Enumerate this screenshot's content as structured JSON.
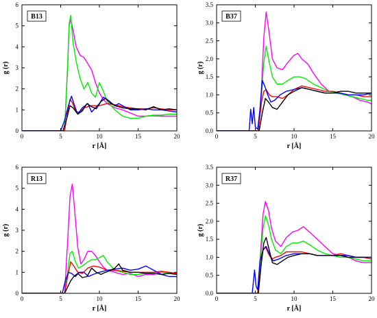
{
  "chart_data": [
    {
      "type": "line",
      "panel_label": "B13",
      "xlabel": "r [Å]",
      "ylabel": "g (r)",
      "xlim": [
        0,
        20
      ],
      "ylim": [
        0,
        6
      ],
      "x_ticks": [
        0,
        5,
        10,
        15,
        20
      ],
      "y_ticks": [
        0,
        1,
        2,
        3,
        4,
        5,
        6
      ],
      "series": [
        {
          "color": "#ff00ff",
          "x": [
            0,
            5.5,
            5.9,
            6.1,
            6.3,
            6.6,
            7,
            7.5,
            8,
            8.5,
            9,
            9.5,
            10,
            10.5,
            11,
            12,
            13,
            14,
            15,
            16,
            17,
            18,
            19,
            20
          ],
          "y": [
            0,
            0,
            3.0,
            5.0,
            5.3,
            4.8,
            4.0,
            3.6,
            3.5,
            3.2,
            2.9,
            2.3,
            1.8,
            1.5,
            1.3,
            1.1,
            1.0,
            0.85,
            0.7,
            0.7,
            0.72,
            0.7,
            0.7,
            0.7
          ]
        },
        {
          "color": "#00ee00",
          "x": [
            0,
            5.5,
            5.9,
            6.1,
            6.3,
            6.6,
            7,
            7.5,
            8,
            8.5,
            9,
            9.5,
            10,
            10.5,
            11,
            12,
            13,
            14,
            15,
            16,
            17,
            18,
            19,
            20
          ],
          "y": [
            0,
            0,
            3.2,
            5.1,
            5.5,
            4.2,
            3.3,
            2.5,
            2.0,
            2.3,
            1.8,
            1.6,
            2.3,
            1.9,
            1.4,
            1.0,
            0.7,
            0.6,
            0.6,
            0.7,
            0.75,
            0.75,
            0.8,
            0.8
          ]
        },
        {
          "color": "#ff0000",
          "x": [
            0,
            5.5,
            5.9,
            6.2,
            6.5,
            7,
            7.5,
            8,
            9,
            10,
            11,
            12,
            13,
            14,
            15,
            16,
            17,
            18,
            19,
            20
          ],
          "y": [
            0,
            0,
            0.9,
            1.5,
            1.35,
            0.9,
            0.9,
            1.1,
            1.2,
            1.2,
            1.3,
            1.25,
            1.15,
            1.1,
            1.05,
            1.05,
            1.1,
            1.05,
            1.0,
            1.0
          ]
        },
        {
          "color": "#0000ff",
          "x": [
            0,
            5.0,
            5.5,
            6.0,
            6.4,
            6.8,
            7.2,
            7.8,
            8.5,
            9,
            9.5,
            10,
            10.5,
            11,
            12,
            12.5,
            13,
            14,
            15,
            16,
            17,
            18,
            19,
            20
          ],
          "y": [
            0,
            0,
            0.5,
            1.2,
            1.65,
            1.2,
            0.8,
            1.1,
            1.3,
            0.9,
            1.1,
            1.3,
            1.6,
            1.5,
            1.2,
            1.3,
            1.2,
            1.0,
            1.0,
            1.05,
            1.0,
            1.0,
            0.95,
            0.9
          ]
        },
        {
          "color": "#000000",
          "x": [
            0,
            5.3,
            5.8,
            6.2,
            6.6,
            7.2,
            7.8,
            8.4,
            9,
            9.6,
            10.2,
            10.8,
            11.5,
            12,
            13,
            14,
            15,
            16,
            17,
            18,
            19,
            20
          ],
          "y": [
            0,
            0,
            0.6,
            1.2,
            1.1,
            0.8,
            0.95,
            1.3,
            1.15,
            1.05,
            1.4,
            1.55,
            1.3,
            1.2,
            1.1,
            1.05,
            1.05,
            1.0,
            1.15,
            1.0,
            1.05,
            1.0
          ]
        }
      ]
    },
    {
      "type": "line",
      "panel_label": "B37",
      "xlabel": "r [Å]",
      "ylabel": "g (r)",
      "xlim": [
        0,
        20
      ],
      "ylim": [
        0,
        3.5
      ],
      "x_ticks": [
        0,
        5,
        10,
        15,
        20
      ],
      "y_ticks": [
        0,
        0.5,
        1.0,
        1.5,
        2.0,
        2.5,
        3.0,
        3.5
      ],
      "series": [
        {
          "color": "#ff00ff",
          "x": [
            0,
            5.4,
            5.8,
            6.1,
            6.4,
            6.8,
            7.2,
            7.8,
            8.5,
            9.2,
            10,
            10.5,
            11,
            11.8,
            12.5,
            13.5,
            14.5,
            15.5,
            16.5,
            17.5,
            18.5,
            19.5,
            20
          ],
          "y": [
            0,
            0,
            1.2,
            2.6,
            3.3,
            2.7,
            2.0,
            1.75,
            1.7,
            1.9,
            2.1,
            2.15,
            2.0,
            1.85,
            1.6,
            1.3,
            1.1,
            1.05,
            1.0,
            0.95,
            0.85,
            0.8,
            0.75
          ]
        },
        {
          "color": "#00ee00",
          "x": [
            0,
            5.4,
            5.8,
            6.1,
            6.4,
            6.8,
            7.2,
            7.8,
            8.5,
            9.2,
            10,
            10.8,
            11.5,
            12.5,
            13.5,
            14.5,
            15.5,
            16.5,
            17.5,
            18.5,
            19.5,
            20
          ],
          "y": [
            0,
            0,
            1.0,
            1.9,
            2.35,
            1.9,
            1.5,
            1.3,
            1.3,
            1.4,
            1.5,
            1.5,
            1.45,
            1.3,
            1.2,
            1.1,
            1.05,
            1.0,
            0.95,
            0.9,
            0.85,
            0.85
          ]
        },
        {
          "color": "#ff0000",
          "x": [
            0,
            5.4,
            5.8,
            6.1,
            6.4,
            6.8,
            7.2,
            7.8,
            8.5,
            9.2,
            10,
            11,
            12,
            13,
            14,
            15,
            16,
            17,
            18,
            19,
            20
          ],
          "y": [
            0,
            0,
            0.8,
            1.1,
            1.15,
            1.0,
            0.95,
            0.95,
            0.9,
            1.0,
            1.15,
            1.25,
            1.2,
            1.15,
            1.1,
            1.1,
            1.05,
            1.0,
            1.0,
            0.95,
            0.95
          ]
        },
        {
          "color": "#0000ff",
          "x": [
            0,
            4.2,
            4.4,
            4.6,
            4.8,
            5.0,
            5.3,
            5.6,
            5.9,
            6.2,
            6.6,
            7.0,
            7.5,
            8.2,
            9,
            10,
            11,
            12,
            13,
            14,
            15,
            16,
            17,
            18,
            19,
            20
          ],
          "y": [
            0,
            0,
            0.6,
            0.2,
            0.65,
            0.1,
            0.05,
            0.6,
            1.4,
            1.25,
            1.0,
            0.8,
            0.85,
            1.0,
            1.1,
            1.15,
            1.2,
            1.15,
            1.1,
            1.05,
            1.05,
            1.05,
            1.0,
            1.0,
            1.0,
            1.05
          ]
        },
        {
          "color": "#000000",
          "x": [
            0,
            5.5,
            5.9,
            6.3,
            6.7,
            7.2,
            7.8,
            8.5,
            9.2,
            10,
            11,
            12,
            13,
            14,
            15,
            16,
            17,
            18,
            19,
            20
          ],
          "y": [
            0,
            0,
            0.5,
            0.9,
            0.8,
            0.65,
            0.6,
            0.8,
            1.0,
            1.1,
            1.2,
            1.15,
            1.1,
            1.05,
            1.05,
            1.1,
            1.1,
            1.05,
            1.05,
            1.05
          ]
        }
      ]
    },
    {
      "type": "line",
      "panel_label": "R13",
      "xlabel": "r [Å]",
      "ylabel": "g (r)",
      "xlim": [
        0,
        20
      ],
      "ylim": [
        0,
        6
      ],
      "x_ticks": [
        0,
        5,
        10,
        15,
        20
      ],
      "y_ticks": [
        0,
        1,
        2,
        3,
        4,
        5,
        6
      ],
      "series": [
        {
          "color": "#ff00ff",
          "x": [
            0,
            5.5,
            5.9,
            6.2,
            6.5,
            6.8,
            7.2,
            7.6,
            8,
            8.5,
            9,
            9.5,
            10,
            10.5,
            11,
            12,
            13,
            14,
            15,
            16,
            17,
            18,
            19,
            20
          ],
          "y": [
            0,
            0,
            2.5,
            4.6,
            5.2,
            4.0,
            2.2,
            1.4,
            1.6,
            2.0,
            2.0,
            1.8,
            1.5,
            1.25,
            1.1,
            1.0,
            0.9,
            0.95,
            0.8,
            0.9,
            0.9,
            1.0,
            1.0,
            0.9
          ]
        },
        {
          "color": "#00ee00",
          "x": [
            0,
            5.5,
            5.9,
            6.2,
            6.5,
            6.9,
            7.3,
            7.8,
            8.5,
            9,
            9.5,
            10,
            10.5,
            11,
            12,
            13,
            14,
            15,
            16,
            17,
            18,
            19,
            20
          ],
          "y": [
            0,
            0,
            1.0,
            1.9,
            2.0,
            1.5,
            1.2,
            1.3,
            1.5,
            1.6,
            1.6,
            1.7,
            1.8,
            1.5,
            1.1,
            1.0,
            0.9,
            0.9,
            0.95,
            1.0,
            1.0,
            0.95,
            0.9
          ]
        },
        {
          "color": "#ff0000",
          "x": [
            0,
            5.5,
            5.9,
            6.3,
            6.7,
            7.2,
            7.8,
            8.5,
            9.2,
            10,
            11,
            12,
            13,
            14,
            15,
            16,
            17,
            18,
            19,
            20
          ],
          "y": [
            0,
            0,
            0.8,
            1.5,
            1.3,
            1.0,
            0.95,
            1.2,
            1.3,
            1.25,
            1.1,
            1.1,
            1.05,
            1.0,
            1.0,
            1.0,
            1.0,
            1.05,
            1.0,
            0.95
          ]
        },
        {
          "color": "#0000ff",
          "x": [
            0,
            5.2,
            5.6,
            6.0,
            6.4,
            6.9,
            7.4,
            8,
            8.6,
            9.2,
            10,
            11,
            12,
            13,
            14,
            15,
            16,
            16.5,
            17,
            18,
            19,
            20
          ],
          "y": [
            0,
            0,
            0.6,
            1.0,
            0.95,
            0.8,
            1.0,
            1.0,
            0.8,
            0.9,
            1.0,
            1.1,
            1.15,
            1.2,
            1.1,
            1.15,
            1.3,
            1.2,
            1.1,
            0.9,
            0.8,
            0.8
          ]
        },
        {
          "color": "#000000",
          "x": [
            0,
            5.5,
            5.9,
            6.3,
            6.7,
            7.2,
            7.8,
            8.4,
            9,
            9.6,
            10.2,
            10.8,
            11.5,
            12,
            12.5,
            13,
            14,
            15,
            16,
            17,
            18,
            19,
            20
          ],
          "y": [
            0,
            0,
            0.3,
            0.6,
            0.8,
            0.95,
            0.75,
            0.8,
            1.2,
            1.0,
            0.9,
            1.0,
            1.1,
            1.2,
            1.4,
            1.1,
            1.0,
            1.0,
            0.95,
            0.95,
            0.9,
            0.95,
            0.9
          ]
        }
      ]
    },
    {
      "type": "line",
      "panel_label": "R37",
      "xlabel": "r [Å]",
      "ylabel": "g (r)",
      "xlim": [
        0,
        20
      ],
      "ylim": [
        0,
        3.5
      ],
      "x_ticks": [
        0,
        5,
        10,
        15,
        20
      ],
      "y_ticks": [
        0,
        0.5,
        1.0,
        1.5,
        2.0,
        2.5,
        3.0,
        3.5
      ],
      "series": [
        {
          "color": "#ff00ff",
          "x": [
            0,
            5.3,
            5.7,
            6.0,
            6.3,
            6.7,
            7.1,
            7.6,
            8.3,
            9,
            9.8,
            10.5,
            11.2,
            12,
            13,
            14,
            15,
            16,
            17,
            18,
            19,
            20
          ],
          "y": [
            0,
            0,
            1.2,
            2.2,
            2.55,
            2.3,
            1.8,
            1.45,
            1.3,
            1.55,
            1.7,
            1.75,
            1.85,
            1.7,
            1.5,
            1.3,
            1.1,
            1.05,
            1.0,
            0.9,
            0.85,
            0.85
          ]
        },
        {
          "color": "#00ee00",
          "x": [
            0,
            5.3,
            5.7,
            6.0,
            6.3,
            6.7,
            7.1,
            7.6,
            8.3,
            9,
            9.8,
            10.5,
            11.2,
            12,
            13,
            14,
            15,
            16,
            17,
            18,
            19,
            20
          ],
          "y": [
            0,
            0,
            1.0,
            1.8,
            2.15,
            1.9,
            1.5,
            1.2,
            1.1,
            1.3,
            1.4,
            1.4,
            1.45,
            1.35,
            1.2,
            1.1,
            1.05,
            1.0,
            1.0,
            0.95,
            0.9,
            0.9
          ]
        },
        {
          "color": "#ff0000",
          "x": [
            0,
            5.3,
            5.7,
            6.0,
            6.3,
            6.7,
            7.1,
            7.6,
            8.3,
            9,
            10,
            11,
            12,
            13,
            14,
            15,
            16,
            17,
            18,
            19,
            20
          ],
          "y": [
            0,
            0,
            0.7,
            1.2,
            1.3,
            1.1,
            0.95,
            1.0,
            1.05,
            1.15,
            1.15,
            1.15,
            1.1,
            1.05,
            1.05,
            1.05,
            1.1,
            1.05,
            1.0,
            1.0,
            0.95
          ]
        },
        {
          "color": "#0000ff",
          "x": [
            0,
            4.6,
            4.9,
            5.1,
            5.3,
            5.6,
            6.0,
            6.4,
            6.8,
            7.3,
            8,
            9,
            10,
            11,
            12,
            13,
            14,
            15,
            16,
            17,
            18,
            19,
            20
          ],
          "y": [
            0,
            0,
            0.65,
            0.2,
            0.1,
            0.9,
            1.2,
            1.3,
            1.1,
            0.9,
            0.95,
            1.05,
            1.1,
            1.1,
            1.1,
            1.05,
            1.05,
            1.05,
            1.05,
            1.05,
            1.0,
            1.0,
            1.0
          ]
        },
        {
          "color": "#000000",
          "x": [
            0,
            5.4,
            5.8,
            6.1,
            6.4,
            6.8,
            7.2,
            7.8,
            8.5,
            9.2,
            10,
            11,
            12,
            13,
            14,
            15,
            16,
            17,
            18,
            19,
            20
          ],
          "y": [
            0,
            0,
            0.9,
            1.4,
            1.55,
            1.2,
            0.85,
            0.8,
            0.9,
            1.0,
            1.05,
            1.1,
            1.1,
            1.05,
            1.05,
            1.05,
            1.05,
            1.0,
            1.0,
            1.0,
            1.0
          ]
        }
      ]
    }
  ]
}
